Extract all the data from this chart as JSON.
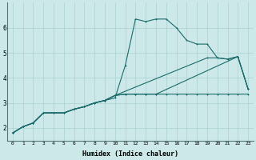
{
  "xlabel": "Humidex (Indice chaleur)",
  "background_color": "#cce8e8",
  "grid_color": "#aad0d0",
  "line_color": "#1a6b6b",
  "xlim": [
    -0.5,
    23.5
  ],
  "ylim": [
    1.5,
    7.0
  ],
  "yticks": [
    2,
    3,
    4,
    5,
    6
  ],
  "xticks": [
    0,
    1,
    2,
    3,
    4,
    5,
    6,
    7,
    8,
    9,
    10,
    11,
    12,
    13,
    14,
    15,
    16,
    17,
    18,
    19,
    20,
    21,
    22,
    23
  ],
  "line1_x": [
    0,
    1,
    2,
    3,
    4,
    5,
    6,
    7,
    8,
    9,
    10,
    11,
    12,
    13,
    14,
    15,
    16,
    17,
    18,
    19,
    20,
    21,
    22,
    23
  ],
  "line1_y": [
    1.8,
    2.05,
    2.2,
    2.6,
    2.6,
    2.6,
    2.75,
    2.85,
    3.0,
    3.1,
    3.2,
    4.5,
    6.35,
    6.25,
    6.35,
    6.35,
    6.0,
    5.5,
    5.35,
    5.35,
    4.8,
    4.75,
    4.85,
    3.55
  ],
  "line2_x": [
    0,
    1,
    2,
    3,
    4,
    5,
    6,
    7,
    8,
    9,
    10,
    11,
    12,
    13,
    14,
    15,
    16,
    17,
    18,
    19,
    20,
    21,
    22,
    23
  ],
  "line2_y": [
    1.8,
    2.05,
    2.2,
    2.6,
    2.6,
    2.6,
    2.75,
    2.85,
    3.0,
    3.1,
    3.3,
    3.35,
    3.35,
    3.35,
    3.35,
    3.35,
    3.35,
    3.35,
    3.35,
    3.35,
    3.35,
    3.35,
    3.35,
    3.35
  ],
  "line3_x": [
    0,
    1,
    2,
    3,
    4,
    5,
    6,
    7,
    8,
    9,
    10,
    11,
    12,
    13,
    14,
    22,
    23
  ],
  "line3_y": [
    1.8,
    2.05,
    2.2,
    2.6,
    2.6,
    2.6,
    2.75,
    2.85,
    3.0,
    3.1,
    3.3,
    3.35,
    3.35,
    3.35,
    3.35,
    4.85,
    3.55
  ],
  "line4_x": [
    0,
    1,
    2,
    3,
    4,
    5,
    6,
    7,
    8,
    9,
    10,
    19,
    20,
    21,
    22,
    23
  ],
  "line4_y": [
    1.8,
    2.05,
    2.2,
    2.6,
    2.6,
    2.6,
    2.75,
    2.85,
    3.0,
    3.1,
    3.3,
    4.8,
    4.8,
    4.75,
    4.85,
    3.55
  ]
}
